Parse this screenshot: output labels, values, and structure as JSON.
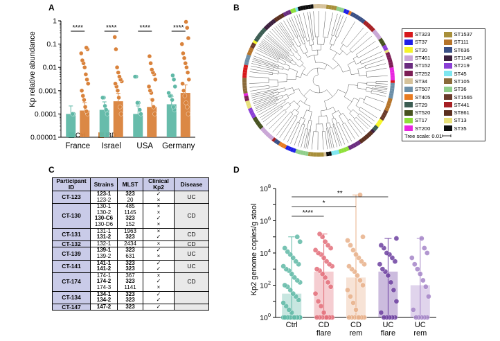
{
  "panels": {
    "a": "A",
    "b": "B",
    "c": "C",
    "d": "D"
  },
  "panelA": {
    "chart_data": {
      "type": "scatter",
      "ylabel": "Kp relative abundance",
      "yscale": "log",
      "ylim": [
        1e-05,
        1
      ],
      "yticks": [
        "1",
        "0.1",
        "0.01",
        "0.001",
        "0.0001",
        "0.00001"
      ],
      "categories": [
        "France",
        "Israel",
        "USA",
        "Germany"
      ],
      "significance": [
        "****",
        "****",
        "****",
        "****"
      ],
      "legend": {
        "ctrl": "Ctrl",
        "ibd": "IBD"
      },
      "colors": {
        "ctrl": "#5fb8a6",
        "ibd": "#d9823b"
      },
      "series": [
        {
          "name": "Ctrl",
          "bar_values": [
            0.0001,
            0.00015,
            0.0001,
            0.00026
          ],
          "points": [
            [
              0.0001,
              0.0001
            ],
            [
              0.0001,
              0.00015,
              0.00022,
              0.0005,
              0.0005
            ],
            [
              0.0001,
              0.00015,
              0.0003,
              0.0003,
              0.004,
              0.004
            ],
            [
              0.00015,
              0.0002,
              0.0004,
              0.0006,
              0.0006,
              0.0008,
              0.0015,
              0.003,
              0.0045
            ]
          ]
        },
        {
          "name": "IBD",
          "bar_values": [
            0.00014,
            0.00035,
            0.0002,
            0.0008
          ],
          "points": [
            [
              0.0001,
              0.00013,
              0.0002,
              0.0004,
              0.0006,
              0.001,
              0.002,
              0.003,
              0.005,
              0.01,
              0.015,
              0.02,
              0.04,
              0.06,
              0.07
            ],
            [
              0.0001,
              0.0002,
              0.0005,
              0.001,
              0.0015,
              0.002,
              0.0025,
              0.003,
              0.004,
              0.006,
              0.01,
              0.06,
              0.2
            ],
            [
              0.0001,
              0.0002,
              0.0004,
              0.0008,
              0.001,
              0.0015,
              0.003,
              0.005,
              0.006,
              0.008,
              0.015,
              0.03
            ],
            [
              0.0001,
              0.0002,
              0.0003,
              0.0006,
              0.001,
              0.002,
              0.003,
              0.006,
              0.01,
              0.015,
              0.025,
              0.04,
              0.1,
              0.18,
              0.5,
              0.9
            ]
          ]
        }
      ]
    }
  },
  "panelB": {
    "legend_left": [
      {
        "label": "ST323",
        "color": "#d7191c"
      },
      {
        "label": "ST37",
        "color": "#1f1fe8"
      },
      {
        "label": "ST20",
        "color": "#f5f52a"
      },
      {
        "label": "ST461",
        "color": "#c9a6d6"
      },
      {
        "label": "ST152",
        "color": "#6a2c7f"
      },
      {
        "label": "ST252",
        "color": "#7d1e55"
      },
      {
        "label": "ST34",
        "color": "#d6c29a"
      },
      {
        "label": "ST507",
        "color": "#6c8fa8"
      },
      {
        "label": "ST405",
        "color": "#e87b21"
      },
      {
        "label": "ST29",
        "color": "#3b5c52"
      },
      {
        "label": "ST520",
        "color": "#46521f"
      },
      {
        "label": "ST17",
        "color": "#8ee03a"
      },
      {
        "label": "ST200",
        "color": "#e826e0"
      }
    ],
    "legend_right": [
      {
        "label": "ST1537",
        "color": "#a88f3a"
      },
      {
        "label": "ST111",
        "color": "#b5742a"
      },
      {
        "label": "ST636",
        "color": "#3a4f85"
      },
      {
        "label": "ST1145",
        "color": "#3c1f3d"
      },
      {
        "label": "ST219",
        "color": "#8b3fd6"
      },
      {
        "label": "ST45",
        "color": "#7ee6f0"
      },
      {
        "label": "ST105",
        "color": "#8a6a3a"
      },
      {
        "label": "ST36",
        "color": "#8fce8a"
      },
      {
        "label": "ST1565",
        "color": "#6a3a2a"
      },
      {
        "label": "ST441",
        "color": "#a61f23"
      },
      {
        "label": "ST861",
        "color": "#5a2e1e"
      },
      {
        "label": "ST13",
        "color": "#e8e07a"
      },
      {
        "label": "ST35",
        "color": "#0d0d0d"
      }
    ],
    "tree_scale": "Tree scale: 0.01"
  },
  "panelC": {
    "headers": [
      "Participant ID",
      "Strains",
      "MLST",
      "Clinical Kp2",
      "Disease"
    ],
    "groups": [
      {
        "id": "CT-123",
        "disease": "UC",
        "rows": [
          {
            "strain": "123-1",
            "mlst": "323",
            "kp2": "✓",
            "bold": true
          },
          {
            "strain": "123-2",
            "mlst": "20",
            "kp2": "×",
            "bold": false
          }
        ]
      },
      {
        "id": "CT-130",
        "disease": "CD",
        "rows": [
          {
            "strain": "130-1",
            "mlst": "485",
            "kp2": "×",
            "bold": false
          },
          {
            "strain": "130-2",
            "mlst": "1145",
            "kp2": "×",
            "bold": false
          },
          {
            "strain": "130-C6",
            "mlst": "323",
            "kp2": "✓",
            "bold": true
          },
          {
            "strain": "130-D6",
            "mlst": "152",
            "kp2": "×",
            "bold": false
          }
        ]
      },
      {
        "id": "CT-131",
        "disease": "CD",
        "rows": [
          {
            "strain": "131-1",
            "mlst": "1963",
            "kp2": "×",
            "bold": false
          },
          {
            "strain": "131-2",
            "mlst": "323",
            "kp2": "✓",
            "bold": true
          }
        ]
      },
      {
        "id": "CT-132",
        "disease": "CD",
        "rows": [
          {
            "strain": "132-1",
            "mlst": "2434",
            "kp2": "×",
            "bold": false
          }
        ]
      },
      {
        "id": "CT-139",
        "disease": "UC",
        "rows": [
          {
            "strain": "139-1",
            "mlst": "323",
            "kp2": "✓",
            "bold": true
          },
          {
            "strain": "139-2",
            "mlst": "631",
            "kp2": "×",
            "bold": false
          }
        ]
      },
      {
        "id": "CT-141",
        "disease": "UC",
        "rows": [
          {
            "strain": "141-1",
            "mlst": "323",
            "kp2": "✓",
            "bold": true
          },
          {
            "strain": "141-2",
            "mlst": "323",
            "kp2": "✓",
            "bold": true
          }
        ]
      },
      {
        "id": "CT-174",
        "disease": "CD",
        "rows": [
          {
            "strain": "174-1",
            "mlst": "367",
            "kp2": "×",
            "bold": false
          },
          {
            "strain": "174-2",
            "mlst": "323",
            "kp2": "✓",
            "bold": true
          },
          {
            "strain": "174-3",
            "mlst": "1141",
            "kp2": "×",
            "bold": false
          }
        ]
      },
      {
        "id": "CT-134",
        "disease": "",
        "rows": [
          {
            "strain": "134-1",
            "mlst": "323",
            "kp2": "✓",
            "bold": true
          },
          {
            "strain": "134-2",
            "mlst": "323",
            "kp2": "✓",
            "bold": true
          }
        ]
      },
      {
        "id": "CT-147",
        "disease": "",
        "rows": [
          {
            "strain": "147-2",
            "mlst": "323",
            "kp2": "✓",
            "bold": true
          }
        ]
      }
    ]
  },
  "panelD": {
    "chart_data": {
      "type": "scatter",
      "ylabel": "Kp2 genome copies/g stool",
      "yscale": "log",
      "ylim": [
        1,
        100000000
      ],
      "categories": [
        [
          "Ctrl"
        ],
        [
          "CD",
          "flare"
        ],
        [
          "CD",
          "rem"
        ],
        [
          "UC",
          "flare"
        ],
        [
          "UC",
          "rem"
        ]
      ],
      "bar_values": [
        30,
        700,
        300,
        700,
        100
      ],
      "colors": [
        "#5fb8a6",
        "#e36f7a",
        "#e8b089",
        "#6c3fa0",
        "#a585c8"
      ],
      "significance": [
        {
          "from": 0,
          "to": 3,
          "label": "**"
        },
        {
          "from": 0,
          "to": 2,
          "label": "*"
        },
        {
          "from": 0,
          "to": 1,
          "label": "****"
        }
      ],
      "points": [
        [
          1,
          1,
          1,
          1,
          1,
          1,
          1,
          1,
          1,
          1,
          1,
          1,
          1,
          1,
          1,
          1,
          1,
          1,
          1,
          1,
          1,
          1,
          2,
          3,
          5,
          8,
          12,
          20,
          30,
          50,
          80,
          100,
          150,
          200,
          300,
          500,
          800,
          1000,
          1500,
          2000,
          3000,
          5000,
          8000,
          12000,
          20000,
          50000,
          100000
        ],
        [
          1,
          1,
          1,
          1,
          1,
          1,
          1,
          1,
          1,
          2,
          5,
          10,
          30,
          80,
          150,
          300,
          500,
          800,
          1000,
          1500,
          2000,
          3000,
          5000,
          8000,
          10000,
          15000,
          20000,
          30000,
          50000,
          100000,
          150000
        ],
        [
          1,
          1,
          1,
          1,
          1,
          1,
          1,
          1,
          1,
          3,
          8,
          20,
          50,
          100,
          200,
          400,
          700,
          1000,
          1500,
          2000,
          3000,
          5000,
          8000,
          15000,
          30000,
          60000,
          100000,
          40000000
        ],
        [
          1,
          1,
          1,
          1,
          1,
          2,
          10,
          50,
          150,
          400,
          700,
          1000,
          2000,
          3000,
          5000,
          8000,
          10000,
          20000,
          30000,
          80000
        ],
        [
          1,
          1,
          1,
          1,
          1,
          3,
          20,
          80,
          200,
          500,
          1000,
          2000,
          5000,
          10000,
          20000,
          80000
        ]
      ]
    }
  }
}
